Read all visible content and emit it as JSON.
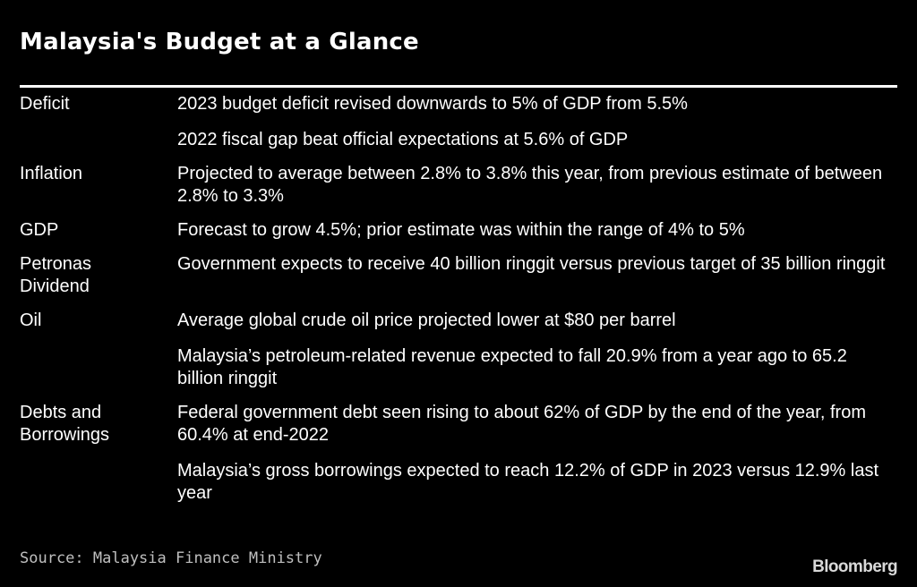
{
  "title": "Malaysia's Budget at a Glance",
  "rows": [
    {
      "label": "Deficit",
      "details": [
        "2023 budget deficit revised downwards to 5% of GDP from 5.5%",
        "2022 fiscal gap beat official expectations at 5.6% of GDP"
      ]
    },
    {
      "label": "Inflation",
      "details": [
        "Projected to average between 2.8% to 3.8% this year, from previous estimate of between 2.8% to 3.3%"
      ]
    },
    {
      "label": "GDP",
      "details": [
        "Forecast to grow 4.5%; prior estimate was within the range of 4% to 5%"
      ]
    },
    {
      "label": "Petronas\nDividend",
      "details": [
        "Government expects to receive 40 billion ringgit versus previous target of 35 billion ringgit"
      ]
    },
    {
      "label": "Oil",
      "details": [
        "Average global crude oil price projected lower at $80 per barrel",
        "Malaysia’s petroleum-related revenue expected to fall 20.9% from a year ago to 65.2 billion ringgit"
      ]
    },
    {
      "label": "Debts and\nBorrowings",
      "details": [
        "Federal government debt seen rising to about 62% of GDP by the end of the year, from 60.4% at end-2022",
        "Malaysia’s gross borrowings expected to reach 12.2% of GDP in 2023 versus 12.9% last year"
      ]
    }
  ],
  "source": "Source: Malaysia Finance Ministry",
  "logo_text": "Bloomberg",
  "colors": {
    "background": "#000000",
    "text": "#ffffff",
    "source_text": "#bfbfbf"
  }
}
